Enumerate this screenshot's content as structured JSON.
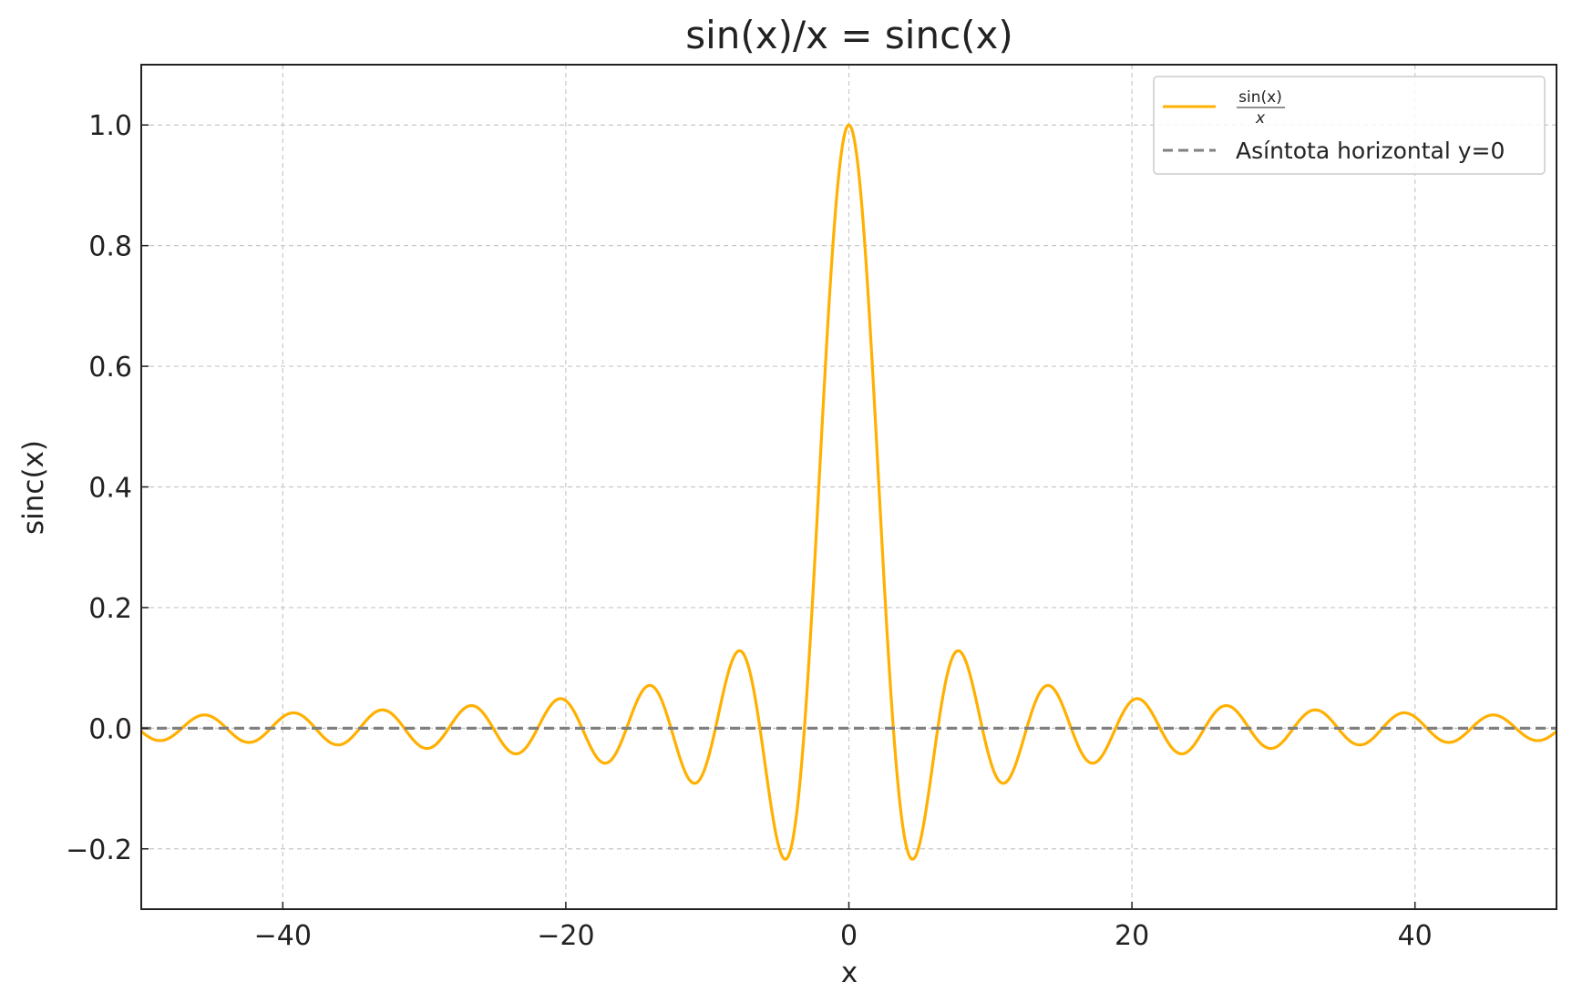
{
  "chart_data": {
    "type": "line",
    "title": "sin(x)/x = sinc(x)",
    "xlabel": "x",
    "ylabel": "sinc(x)",
    "xlim": [
      -50,
      50
    ],
    "ylim": [
      -0.3,
      1.1
    ],
    "xticks": [
      -40,
      -20,
      0,
      20,
      40
    ],
    "xtick_labels": [
      "−40",
      "−20",
      "0",
      "20",
      "40"
    ],
    "yticks": [
      -0.2,
      0.0,
      0.2,
      0.4,
      0.6,
      0.8,
      1.0
    ],
    "ytick_labels": [
      "−0.2",
      "0.0",
      "0.2",
      "0.4",
      "0.6",
      "0.8",
      "1.0"
    ],
    "grid": true,
    "legend_position": "top-right",
    "series": [
      {
        "name": "sin(x)/x",
        "legend_numerator": "sin(x)",
        "legend_denominator": "x",
        "function": "sin(x)/x",
        "color": "#FFB000",
        "style": "solid"
      },
      {
        "name": "Asíntota horizontal y=0",
        "y": 0,
        "color": "#808080",
        "style": "dashed"
      }
    ]
  }
}
